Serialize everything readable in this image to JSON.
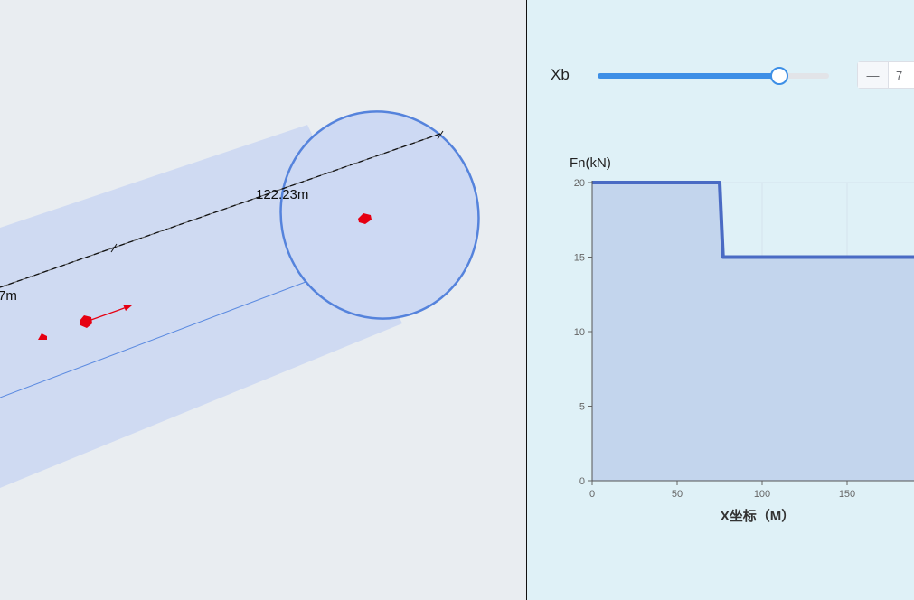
{
  "scene": {
    "distance_label_main": "122.23m",
    "distance_label_partial": "7m"
  },
  "controls": {
    "xb_label": "Xb",
    "slider_fraction": 0.78,
    "stepper_minus_label": "—",
    "stepper_value": "7"
  },
  "chart_data": {
    "type": "area",
    "ylabel": "Fn(kN)",
    "xlabel": "X坐标（M）",
    "x_ticks": [
      0,
      50,
      100,
      150
    ],
    "y_ticks": [
      0,
      5,
      10,
      15,
      20
    ],
    "xlim": [
      0,
      190
    ],
    "ylim": [
      0,
      20
    ],
    "grid": true,
    "colors": {
      "line": "#4a6bc4",
      "fill": "#c3d5ed",
      "grid": "#d6e2ee"
    },
    "series": [
      {
        "points": [
          [
            0,
            20
          ],
          [
            75,
            20
          ],
          [
            77,
            15
          ],
          [
            190,
            15
          ]
        ]
      }
    ]
  }
}
